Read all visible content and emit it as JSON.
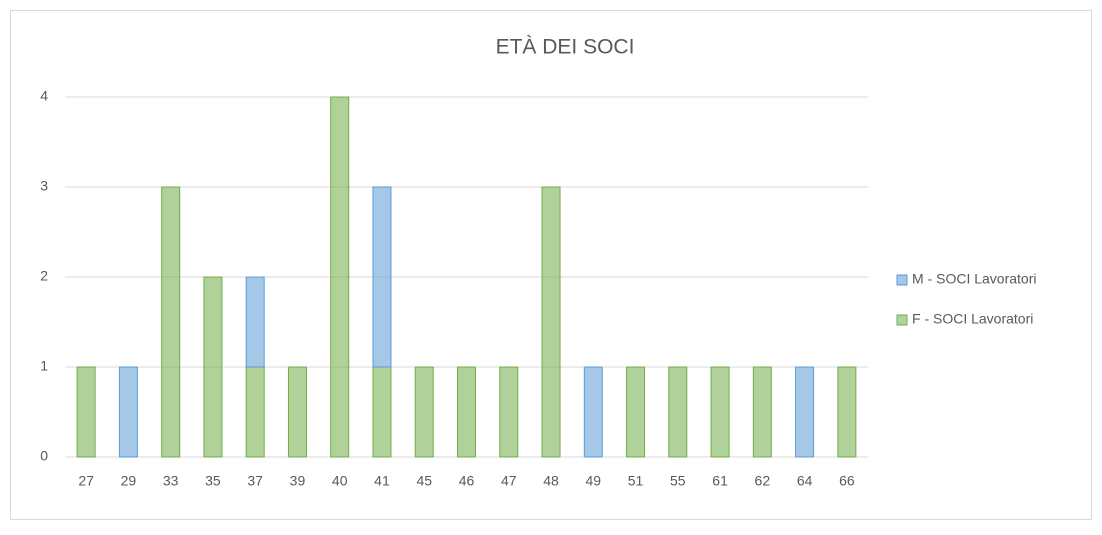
{
  "chart_data": {
    "type": "bar",
    "stacked": true,
    "title": "ETÀ DEI SOCI",
    "categories": [
      "27",
      "29",
      "33",
      "35",
      "37",
      "39",
      "40",
      "41",
      "45",
      "46",
      "47",
      "48",
      "49",
      "51",
      "55",
      "61",
      "62",
      "64",
      "66"
    ],
    "series": [
      {
        "name": "M - SOCI Lavoratori",
        "color": "#5b9bd5",
        "values": [
          0,
          1,
          0,
          0,
          1,
          0,
          0,
          2,
          0,
          0,
          0,
          0,
          1,
          0,
          0,
          0,
          0,
          1,
          0
        ]
      },
      {
        "name": "F - SOCI Lavoratori",
        "color": "#70ad47",
        "values": [
          1,
          0,
          3,
          2,
          1,
          1,
          4,
          1,
          1,
          1,
          1,
          3,
          0,
          1,
          1,
          1,
          1,
          0,
          1
        ]
      }
    ],
    "ylim": [
      0,
      4
    ],
    "yticks": [
      0,
      1,
      2,
      3,
      4
    ],
    "grid": true,
    "legend": "right"
  }
}
